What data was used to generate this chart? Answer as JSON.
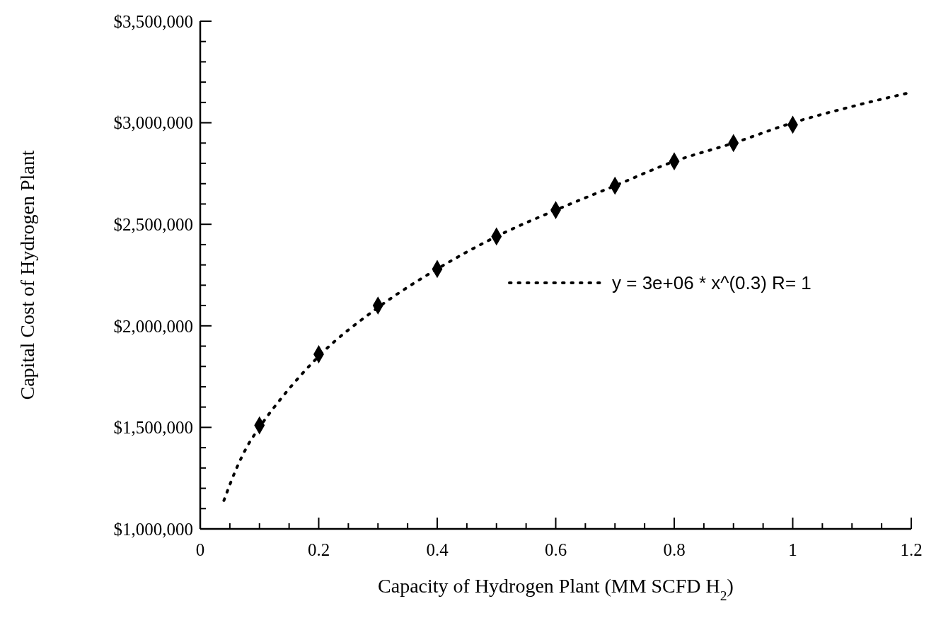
{
  "chart_data": {
    "type": "scatter",
    "xlabel": "Capacity of Hydrogen Plant (MM SCFD H$_{2}$)",
    "ylabel": "Capital Cost of Hydrogen Plant",
    "xlim": [
      0,
      1.2
    ],
    "xticks": [
      0,
      0.2,
      0.4,
      0.6,
      0.8,
      1,
      1.2,
      {
        "value": 0.05,
        "label": null
      },
      {
        "value": 0.1,
        "label": null
      },
      {
        "value": 0.15,
        "label": null
      },
      {
        "value": 0.25,
        "label": null
      },
      {
        "value": 0.3,
        "label": null
      },
      {
        "value": 0.35,
        "label": null
      },
      {
        "value": 0.45,
        "label": null
      },
      {
        "value": 0.5,
        "label": null
      },
      {
        "value": 0.55,
        "label": null
      },
      {
        "value": 0.65,
        "label": null
      },
      {
        "value": 0.7,
        "label": null
      },
      {
        "value": 0.75,
        "label": null
      },
      {
        "value": 0.85,
        "label": null
      },
      {
        "value": 0.9,
        "label": null
      },
      {
        "value": 0.95,
        "label": null
      },
      {
        "value": 1.05,
        "label": null
      },
      {
        "value": 1.1,
        "label": null
      },
      {
        "value": 1.15,
        "label": null
      }
    ],
    "ylim": [
      1000000,
      3500000
    ],
    "yticks": [
      {
        "value": 1000000,
        "label": "$1,000,000"
      },
      {
        "value": 1500000,
        "label": "$1,500,000"
      },
      {
        "value": 2000000,
        "label": "$2,000,000"
      },
      {
        "value": 2500000,
        "label": "$2,500,000"
      },
      {
        "value": 3000000,
        "label": "$3,000,000"
      },
      {
        "value": 3500000,
        "label": "$3,500,000"
      },
      {
        "value": 1100000,
        "label": null
      },
      {
        "value": 1200000,
        "label": null
      },
      {
        "value": 1300000,
        "label": null
      },
      {
        "value": 1400000,
        "label": null
      },
      {
        "value": 1600000,
        "label": null
      },
      {
        "value": 1700000,
        "label": null
      },
      {
        "value": 1800000,
        "label": null
      },
      {
        "value": 1900000,
        "label": null
      },
      {
        "value": 2100000,
        "label": null
      },
      {
        "value": 2200000,
        "label": null
      },
      {
        "value": 2300000,
        "label": null
      },
      {
        "value": 2400000,
        "label": null
      },
      {
        "value": 2600000,
        "label": null
      },
      {
        "value": 2700000,
        "label": null
      },
      {
        "value": 2800000,
        "label": null
      },
      {
        "value": 2900000,
        "label": null
      },
      {
        "value": 3100000,
        "label": null
      },
      {
        "value": 3200000,
        "label": null
      },
      {
        "value": 3300000,
        "label": null
      },
      {
        "value": 3400000,
        "label": null
      }
    ],
    "legend": "right",
    "series": [
      {
        "color": "#000000",
        "marker": "diamond",
        "x": [
          0.1,
          0.2,
          0.3,
          0.4,
          0.5,
          0.6,
          0.7,
          0.8,
          0.9,
          1.0
        ],
        "values": [
          1510000,
          1860000,
          2100000,
          2280000,
          2440000,
          2570000,
          2690000,
          2810000,
          2900000,
          2990000
        ]
      },
      {
        "type": "line",
        "name": "y = 3e+06 * x^(0.3) R= 1",
        "color": "#000000",
        "marker": "none",
        "line_style": "dotted",
        "x": [
          0.04,
          0.06,
          0.08,
          0.1,
          0.15,
          0.2,
          0.3,
          0.4,
          0.5,
          0.6,
          0.7,
          0.8,
          0.9,
          1.0,
          1.1,
          1.2
        ],
        "values": [
          1140000,
          1290000,
          1410000,
          1500000,
          1690000,
          1850000,
          2090000,
          2280000,
          2440000,
          2570000,
          2690000,
          2810000,
          2900000,
          3000000,
          3080000,
          3150000
        ]
      }
    ]
  }
}
